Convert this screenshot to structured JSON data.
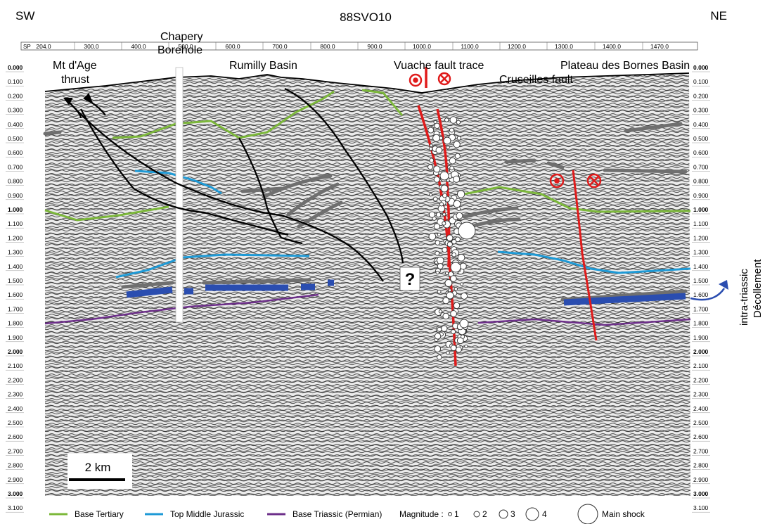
{
  "header": {
    "left": "SW",
    "center": "88SVO10",
    "right": "NE"
  },
  "sp_axis": {
    "prefix": "SP",
    "labels": [
      "204.0",
      "300.0",
      "400.0",
      "500.0",
      "600.0",
      "700.0",
      "800.0",
      "900.0",
      "1000.0",
      "1100.0",
      "1200.0",
      "1300.0",
      "1400.0",
      "1470.0"
    ]
  },
  "time_axis": {
    "labels": [
      "0.000",
      "0.100",
      "0.200",
      "0.300",
      "0.400",
      "0.500",
      "0.600",
      "0.700",
      "0.800",
      "0.900",
      "1.000",
      "1.100",
      "1.200",
      "1.300",
      "1.400",
      "1.500",
      "1.600",
      "1.700",
      "1.800",
      "1.900",
      "2.000",
      "2.100",
      "2.200",
      "2.300",
      "2.400",
      "2.500",
      "2.600",
      "2.700",
      "2.800",
      "2.900",
      "3.000",
      "3.100"
    ],
    "bold": [
      "0.000",
      "1.000",
      "2.000",
      "3.000"
    ]
  },
  "annotations": {
    "mt_dage": "Mt d'Age",
    "thrust": "thrust",
    "chapery": "Chapery",
    "borehole": "Borehole",
    "rumilly": "Rumilly  Basin",
    "vuache": "Vuache fault trace",
    "cruseilles": "Cruseilles fault",
    "plateau": "Plateau des Bornes Basin",
    "question": "?",
    "intra1": "intra-triassic",
    "intra2": "Décollement"
  },
  "scale_bar": {
    "label": "2 km"
  },
  "legend": {
    "items": [
      {
        "label": "Base Tertiary",
        "color": "#7cb83a"
      },
      {
        "label": "Top Middle Jurassic",
        "color": "#1e9ad6"
      },
      {
        "label": "Base Triassic (Permian)",
        "color": "#6d2f8a"
      }
    ],
    "magnitude_label": "Magnitude :",
    "magnitudes": [
      "1",
      "2",
      "3",
      "4"
    ],
    "main_shock": "Main shock"
  },
  "colors": {
    "fault": "#e01b1b",
    "triassic_band": "#2a4db0",
    "gray_reflector": "#777777"
  }
}
